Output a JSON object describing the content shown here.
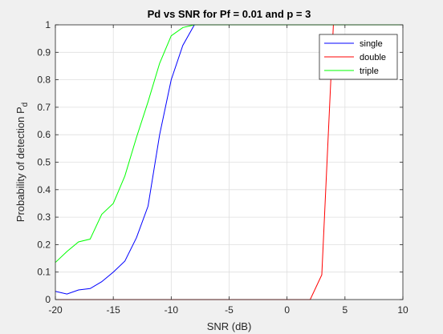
{
  "chart_data": {
    "type": "line",
    "title": "Pd vs SNR for Pf = 0.01 and p = 3",
    "xlabel": "SNR (dB)",
    "ylabel_main": "Probability of detection P",
    "ylabel_sub": "d",
    "xlim": [
      -20,
      10
    ],
    "ylim": [
      0,
      1
    ],
    "xticks": [
      -20,
      -15,
      -10,
      -5,
      0,
      5,
      10
    ],
    "xtick_labels": [
      "-20",
      "-15",
      "-10",
      "-5",
      "0",
      "5",
      "10"
    ],
    "yticks": [
      0,
      0.1,
      0.2,
      0.3,
      0.4,
      0.5,
      0.6,
      0.7,
      0.8,
      0.9,
      1
    ],
    "ytick_labels": [
      "0",
      "0.1",
      "0.2",
      "0.3",
      "0.4",
      "0.5",
      "0.6",
      "0.7",
      "0.8",
      "0.9",
      "1"
    ],
    "grid": true,
    "legend_position": "top-right",
    "series": [
      {
        "name": "single",
        "color": "#0000ff",
        "x": [
          -20,
          -19,
          -18,
          -17,
          -16,
          -15,
          -14,
          -13,
          -12,
          -11,
          -10,
          -9,
          -8,
          -7,
          -6,
          -5,
          -4,
          -3,
          -2,
          -1,
          0,
          1,
          2,
          3,
          4,
          5,
          6,
          7,
          8,
          9,
          10
        ],
        "y": [
          0.03,
          0.02,
          0.035,
          0.04,
          0.065,
          0.1,
          0.14,
          0.225,
          0.34,
          0.6,
          0.8,
          0.925,
          1,
          1,
          1,
          1,
          1,
          1,
          1,
          1,
          1,
          1,
          1,
          1,
          1,
          1,
          1,
          1,
          1,
          1,
          1
        ]
      },
      {
        "name": "double",
        "color": "#ff0000",
        "x": [
          -20,
          -19,
          -18,
          -17,
          -16,
          -15,
          -14,
          -13,
          -12,
          -11,
          -10,
          -9,
          -8,
          -7,
          -6,
          -5,
          -4,
          -3,
          -2,
          -1,
          0,
          1,
          2,
          3,
          4,
          5,
          6,
          7,
          8,
          9,
          10
        ],
        "y": [
          0,
          0,
          0,
          0,
          0,
          0,
          0,
          0,
          0,
          0,
          0,
          0,
          0,
          0,
          0,
          0,
          0,
          0,
          0,
          0,
          0,
          0,
          0,
          0.09,
          1,
          1,
          1,
          1,
          1,
          1,
          1
        ]
      },
      {
        "name": "triple",
        "color": "#00ff00",
        "x": [
          -20,
          -19,
          -18,
          -17,
          -16,
          -15,
          -14,
          -13,
          -12,
          -11,
          -10,
          -9,
          -8,
          -7,
          -6,
          -5,
          -4,
          -3,
          -2,
          -1,
          0,
          1,
          2,
          3,
          4,
          5,
          6,
          7,
          8,
          9,
          10
        ],
        "y": [
          0.135,
          0.175,
          0.21,
          0.22,
          0.31,
          0.35,
          0.45,
          0.59,
          0.72,
          0.86,
          0.96,
          0.99,
          1,
          1,
          1,
          1,
          1,
          1,
          1,
          1,
          1,
          1,
          1,
          1,
          1,
          1,
          1,
          1,
          1,
          1,
          1
        ]
      }
    ]
  }
}
